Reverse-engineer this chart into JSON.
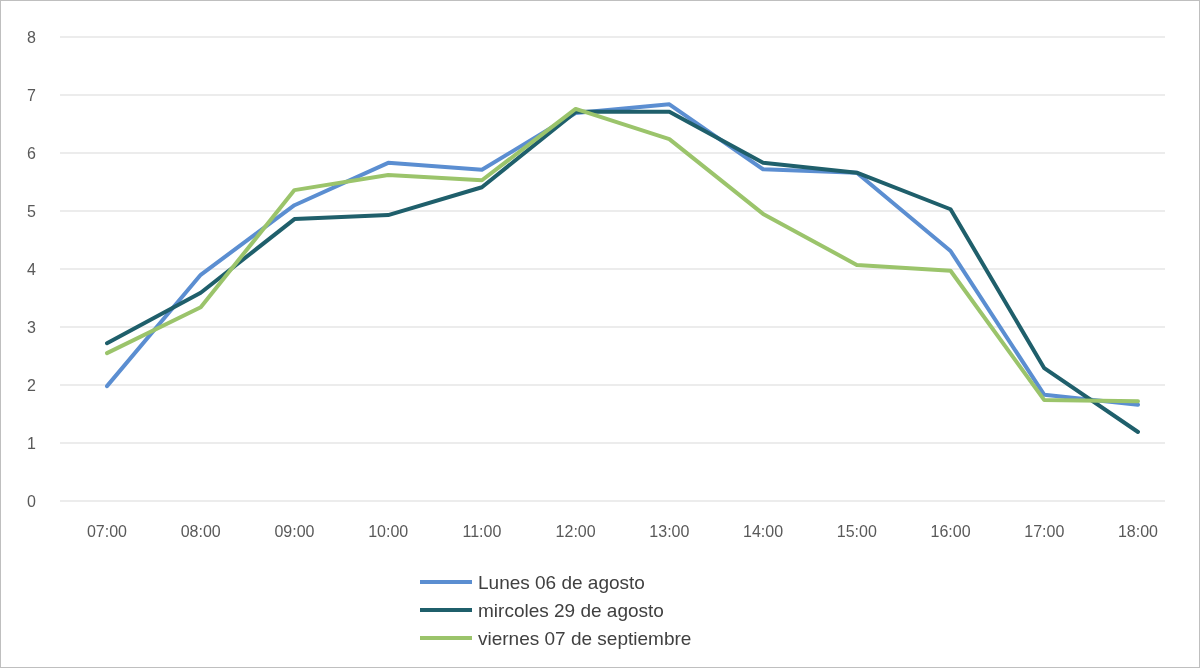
{
  "chart_data": {
    "type": "line",
    "categories": [
      "07:00",
      "08:00",
      "09:00",
      "10:00",
      "11:00",
      "12:00",
      "13:00",
      "14:00",
      "15:00",
      "16:00",
      "17:00",
      "18:00"
    ],
    "series": [
      {
        "name": "Lunes 06 de agosto",
        "color": "#5b8ed1",
        "values": [
          1.98,
          3.9,
          5.1,
          5.83,
          5.71,
          6.69,
          6.84,
          5.72,
          5.66,
          4.31,
          1.83,
          1.66
        ]
      },
      {
        "name": "mircoles 29 de agosto",
        "color": "#1f5f6b",
        "values": [
          2.72,
          3.59,
          4.86,
          4.93,
          5.41,
          6.71,
          6.71,
          5.83,
          5.66,
          5.03,
          2.29,
          1.19
        ]
      },
      {
        "name": "viernes 07 de septiembre",
        "color": "#9bc46b",
        "values": [
          2.55,
          3.34,
          5.36,
          5.62,
          5.53,
          6.76,
          6.24,
          4.95,
          4.07,
          3.97,
          1.74,
          1.72
        ]
      }
    ],
    "ylim": [
      0,
      8
    ],
    "yticks": [
      0,
      1,
      2,
      3,
      4,
      5,
      6,
      7,
      8
    ],
    "grid": "y",
    "legend": "bottom",
    "marker": "none",
    "line_style": "solid"
  }
}
